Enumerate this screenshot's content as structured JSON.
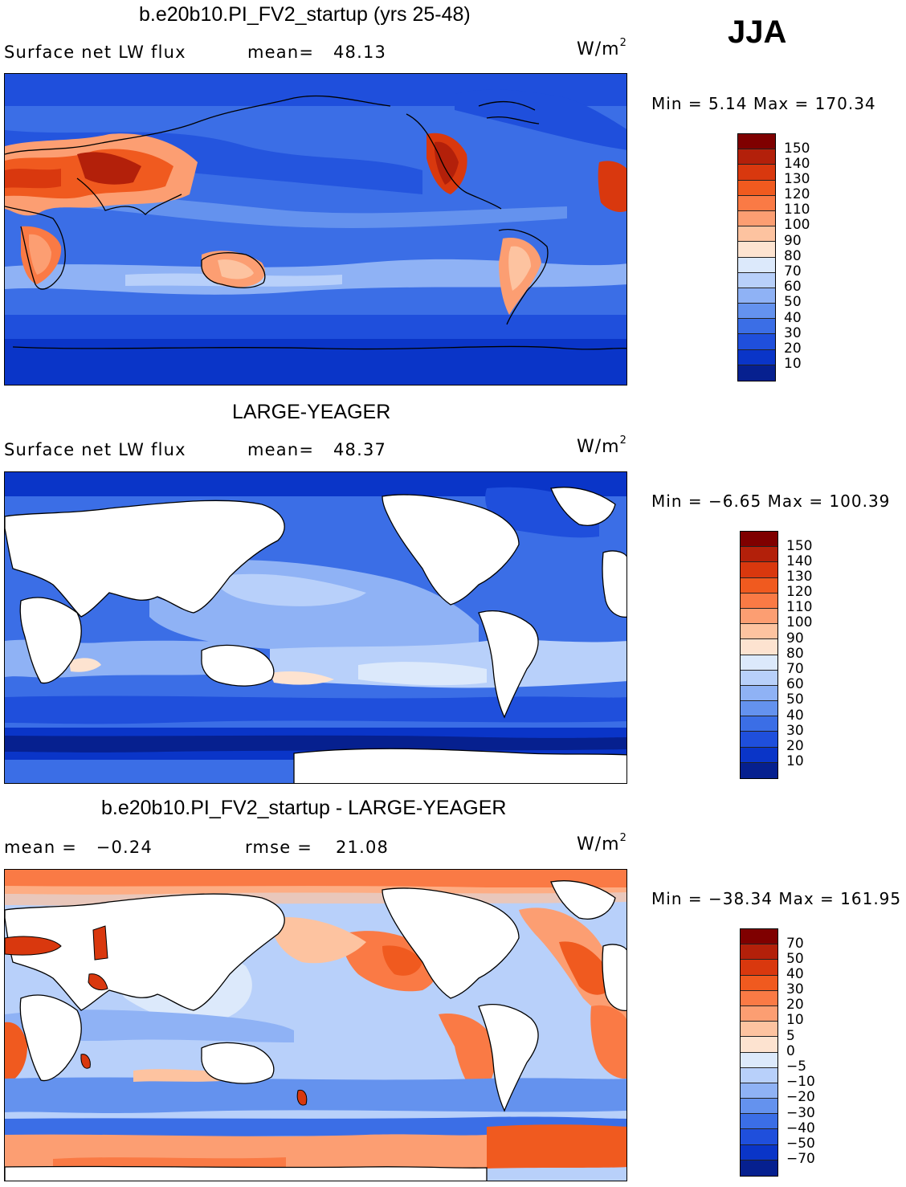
{
  "season": "JJA",
  "units_label": "W/m",
  "units_exponent": "2",
  "panels": [
    {
      "title": "b.e20b10.PI_FV2_startup (yrs 25-48)",
      "left_label": "Surface net LW flux",
      "stat_label": "mean=",
      "stat_value": "48.13",
      "minmax": "Min =    5.14 Max = 170.34",
      "colorbar_labels": [
        "150",
        "140",
        "130",
        "120",
        "110",
        "100",
        "90",
        "80",
        "70",
        "60",
        "50",
        "40",
        "30",
        "20",
        "10"
      ],
      "colorbar_colors": [
        "#7f0000",
        "#b3200a",
        "#d9380e",
        "#f05a1f",
        "#fa7a45",
        "#fc9e72",
        "#fdc3a0",
        "#fde3d0",
        "#dce9fb",
        "#b8d0fa",
        "#8fb2f5",
        "#6492ee",
        "#3b6ee6",
        "#1f4fdc",
        "#0a35c8",
        "#06208f"
      ]
    },
    {
      "title": "LARGE-YEAGER",
      "left_label": "Surface net LW flux",
      "stat_label": "mean=",
      "stat_value": "48.37",
      "minmax": "Min =  −6.65 Max = 100.39",
      "colorbar_labels": [
        "150",
        "140",
        "130",
        "120",
        "110",
        "100",
        "90",
        "80",
        "70",
        "60",
        "50",
        "40",
        "30",
        "20",
        "10"
      ],
      "colorbar_colors": [
        "#7f0000",
        "#b3200a",
        "#d9380e",
        "#f05a1f",
        "#fa7a45",
        "#fc9e72",
        "#fdc3a0",
        "#fde3d0",
        "#dce9fb",
        "#b8d0fa",
        "#8fb2f5",
        "#6492ee",
        "#3b6ee6",
        "#1f4fdc",
        "#0a35c8",
        "#06208f"
      ]
    },
    {
      "title": "b.e20b10.PI_FV2_startup - LARGE-YEAGER",
      "left_label": "mean =   −0.24",
      "stat_label": "rmse =",
      "stat_value": "21.08",
      "minmax": "Min = −38.34 Max = 161.95",
      "colorbar_labels": [
        "70",
        "50",
        "40",
        "30",
        "20",
        "10",
        "5",
        "0",
        "−5",
        "−10",
        "−20",
        "−30",
        "−40",
        "−50",
        "−70"
      ],
      "colorbar_colors": [
        "#7f0000",
        "#b3200a",
        "#d9380e",
        "#f05a1f",
        "#fa7a45",
        "#fc9e72",
        "#fdc3a0",
        "#fde3d0",
        "#dce9fb",
        "#b8d0fa",
        "#8fb2f5",
        "#6492ee",
        "#3b6ee6",
        "#1f4fdc",
        "#0a35c8",
        "#06208f"
      ]
    }
  ]
}
